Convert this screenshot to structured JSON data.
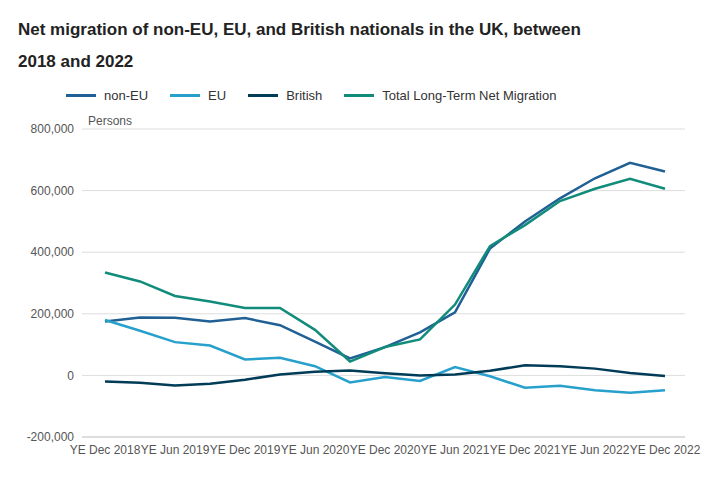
{
  "chart_data": {
    "type": "line",
    "title": "Net migration of non-EU, EU, and British nationals in the UK, between 2018 and 2022",
    "ylabel": "Persons",
    "categories": [
      "YE Dec 2018",
      null,
      "YE Jun 2019",
      null,
      "YE Dec 2019",
      null,
      "YE Jun 2020",
      null,
      "YE Dec 2020",
      null,
      "YE Jun 2021",
      null,
      "YE Dec 2021",
      null,
      "YE Jun 2022",
      null,
      "YE Dec 2022"
    ],
    "series": [
      {
        "name": "non-EU",
        "color": "#206095",
        "values": [
          175000,
          188000,
          187000,
          175000,
          186000,
          163000,
          110000,
          55000,
          92000,
          140000,
          205000,
          412000,
          500000,
          575000,
          640000,
          690000,
          662000
        ]
      },
      {
        "name": "EU",
        "color": "#27a0cc",
        "values": [
          180000,
          145000,
          108000,
          97000,
          52000,
          57000,
          30000,
          -23000,
          -5000,
          -18000,
          27000,
          -3000,
          -40000,
          -34000,
          -48000,
          -56000,
          -48000
        ]
      },
      {
        "name": "British",
        "color": "#003c57",
        "values": [
          -20000,
          -24000,
          -33000,
          -27000,
          -14000,
          3000,
          12000,
          16000,
          7000,
          0,
          3000,
          15000,
          33000,
          30000,
          22000,
          8000,
          -2000
        ]
      },
      {
        "name": "Total Long-Term Net Migration",
        "color": "#118c7b",
        "values": [
          334000,
          305000,
          258000,
          240000,
          219000,
          219000,
          148000,
          45000,
          92000,
          117000,
          230000,
          420000,
          488000,
          566000,
          606000,
          638000,
          606000
        ]
      }
    ],
    "ylim": [
      -200000,
      800000
    ],
    "yticks": [
      {
        "value": -200000,
        "label": "-200,000"
      },
      0,
      {
        "value": 200000,
        "label": "200,000"
      },
      {
        "value": 400000,
        "label": "400,000"
      },
      {
        "value": 600000,
        "label": "600,000"
      },
      {
        "value": 800000,
        "label": "800,000"
      }
    ],
    "grid": true,
    "legend": "top"
  }
}
